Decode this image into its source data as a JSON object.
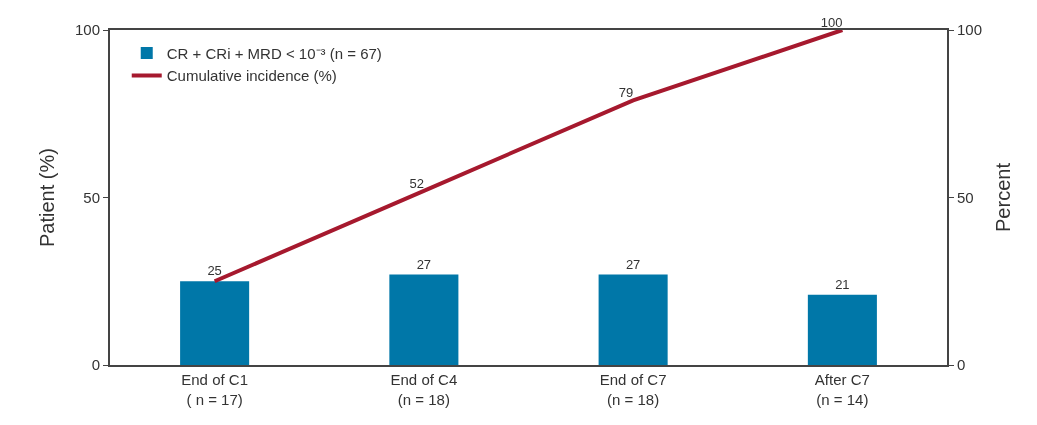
{
  "chart_data": {
    "type": "bar",
    "categories": [
      "End of C1\n( n = 17)",
      "End of C4\n(n = 18)",
      "End of C7\n(n = 18)",
      "After C7\n(n = 14)"
    ],
    "series": [
      {
        "name": "CR + CRi + MRD < 10⁻³ (n = 67)",
        "color": "#0077a8",
        "values": [
          25,
          27,
          27,
          21
        ],
        "value_labels": [
          "25",
          "27",
          "27",
          "21"
        ]
      },
      {
        "name": "Cumulative incidence (%)",
        "type": "line",
        "axis": "y2",
        "color": "#a6192e",
        "values": [
          25,
          52,
          79,
          100
        ],
        "value_labels": [
          null,
          "52",
          "79",
          "100"
        ]
      }
    ],
    "ylabel": "Patient (%)",
    "y2label": "Percent",
    "ylim": [
      0,
      100
    ],
    "yticks": [
      0,
      50,
      100
    ],
    "y2lim": [
      0,
      100
    ],
    "y2ticks": [
      0,
      50,
      100
    ],
    "legend": "top left",
    "marker": "none"
  }
}
